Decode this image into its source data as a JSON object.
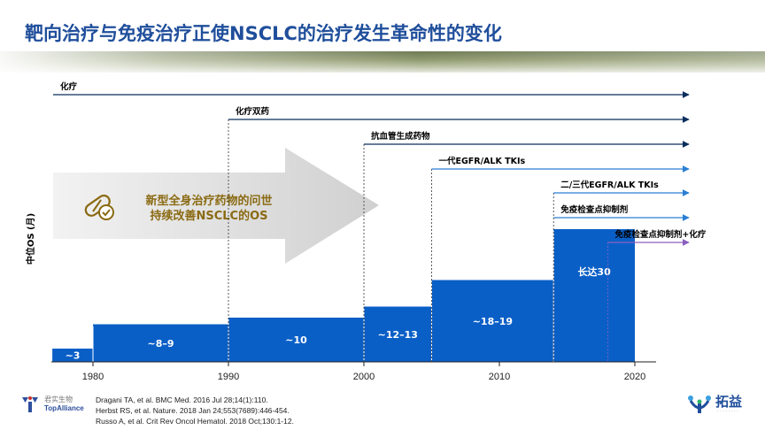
{
  "title": "靶向治疗与免疫治疗正使NSCLC的治疗发生革命性的变化",
  "arrow_text": {
    "line1": "新型全身治疗药物的问世",
    "line2": "持续改善NSCLC的OS"
  },
  "colors": {
    "title": "#1f4e9b",
    "step_fill": "#0a5fc7",
    "arrow_dark": "#0b2e5c",
    "arrow_blue": "#2a7fd4",
    "arrow_purple": "#8b5fbf",
    "arrow_text": "#8a6a12",
    "big_arrow": "#d9d9d9"
  },
  "chart_data": {
    "type": "area",
    "title": "",
    "xlabel": "",
    "ylabel": "中位OS (月)",
    "xlim": [
      1977,
      2025
    ],
    "x_ticks": [
      "1980",
      "1990",
      "2000",
      "2010",
      "2020"
    ],
    "x_tick_values": [
      1980,
      1990,
      2000,
      2010,
      2020
    ],
    "steps": [
      {
        "start": 1977,
        "end": 1980,
        "level": 3,
        "label": "~3"
      },
      {
        "start": 1980,
        "end": 1990,
        "level": 8.5,
        "label": "~8–9"
      },
      {
        "start": 1990,
        "end": 2000,
        "level": 10,
        "label": "~10"
      },
      {
        "start": 2000,
        "end": 2005,
        "level": 12.5,
        "label": "~12–13"
      },
      {
        "start": 2005,
        "end": 2014,
        "level": 18.5,
        "label": "~18–19"
      },
      {
        "start": 2014,
        "end": 2020,
        "level": 30,
        "label": "长达30"
      }
    ],
    "treatment_lines": [
      {
        "label": "化疗",
        "start": 1977,
        "color": "dark",
        "dashed_start": false
      },
      {
        "label": "化疗双药",
        "start": 1990,
        "color": "dark",
        "dashed_start": true
      },
      {
        "label": "抗血管生成药物",
        "start": 2000,
        "color": "dark",
        "dashed_start": true
      },
      {
        "label": "一代EGFR/ALK TKIs",
        "start": 2005,
        "color": "blue",
        "dashed_start": true
      },
      {
        "label": "二/三代EGFR/ALK TKIs",
        "start": 2014,
        "color": "blue",
        "dashed_start": true
      },
      {
        "label": "免疫检查点抑制剂",
        "start": 2014,
        "color": "blue",
        "dashed_start": false
      },
      {
        "label": "免疫检查点抑制剂+化疗",
        "start": 2018,
        "color": "purple",
        "dashed_start": true
      }
    ],
    "grid": false,
    "legend": "none"
  },
  "references": [
    "Dragani TA, et al. BMC Med. 2016 Jul 28;14(1):110.",
    "Herbst RS, et al. Nature. 2018 Jan 24;553(7689):446-454.",
    "Russo A, et al. Crit Rev Oncol Hematol. 2018 Oct;130:1-12."
  ],
  "logos": {
    "left_cn": "君实生物",
    "left_en": "TopAlliance",
    "right_cn": "拓益",
    "right_icon": "topalliance-logo-icon",
    "left_icon": "junshi-logo-icon"
  }
}
